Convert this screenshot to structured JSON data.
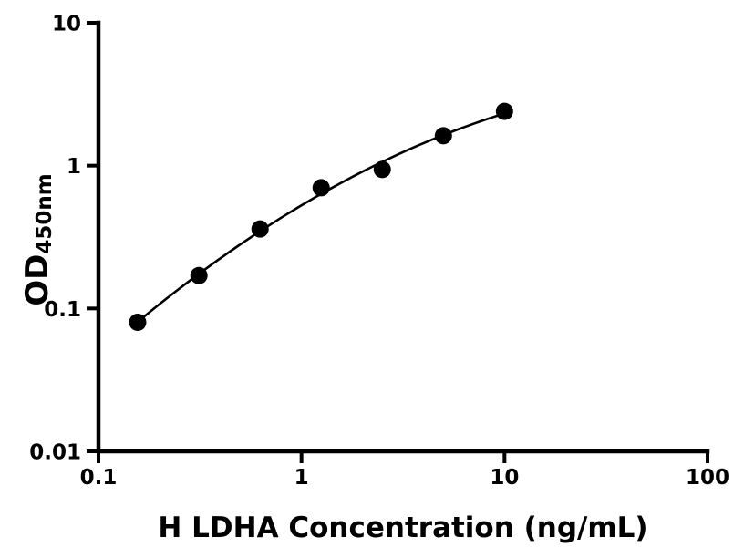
{
  "figure": {
    "background": "#ffffff"
  },
  "chart_data": {
    "type": "scatter",
    "title": "",
    "xlabel": "H LDHA Concentration (ng/mL)",
    "ylabel_main": "OD",
    "ylabel_sub": "450nm",
    "x_scale": "log",
    "y_scale": "log",
    "xlim": [
      0.1,
      100
    ],
    "ylim": [
      0.01,
      10
    ],
    "x_ticks": [
      {
        "value": 0.1,
        "label": "0.1"
      },
      {
        "value": 1,
        "label": "1"
      },
      {
        "value": 10,
        "label": "10"
      },
      {
        "value": 100,
        "label": "100"
      }
    ],
    "y_ticks": [
      {
        "value": 0.01,
        "label": "0.01"
      },
      {
        "value": 0.1,
        "label": "0.1"
      },
      {
        "value": 1,
        "label": "1"
      },
      {
        "value": 10,
        "label": "10"
      }
    ],
    "grid": false,
    "legend": null,
    "series": [
      {
        "name": "standard-curve",
        "marker": "filled-circle",
        "line": "log-log-quadratic-fit",
        "color": "#000000",
        "points": [
          {
            "x": 0.156,
            "y": 0.08
          },
          {
            "x": 0.3125,
            "y": 0.17
          },
          {
            "x": 0.625,
            "y": 0.36
          },
          {
            "x": 1.25,
            "y": 0.7
          },
          {
            "x": 2.5,
            "y": 0.94
          },
          {
            "x": 5,
            "y": 1.62
          },
          {
            "x": 10,
            "y": 2.4
          }
        ]
      }
    ]
  },
  "style": {
    "background": "#ffffff",
    "axis_color": "#000000",
    "curve_color": "#000000",
    "marker_color": "#000000",
    "text_color": "#000000"
  }
}
